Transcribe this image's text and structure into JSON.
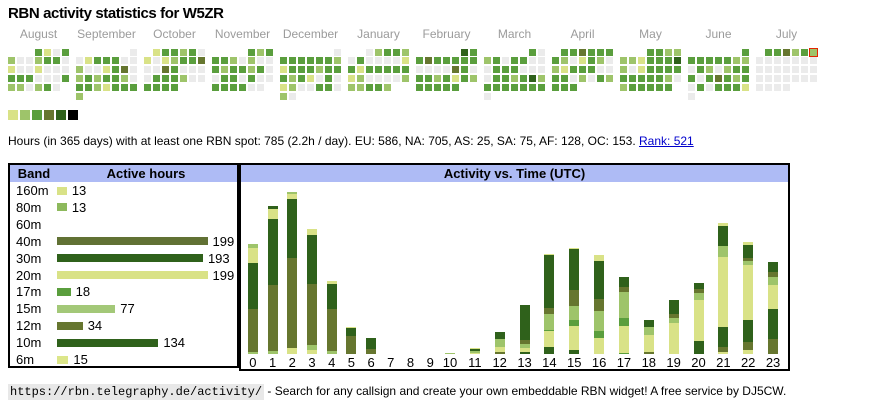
{
  "page": {
    "title": "RBN activity statistics for W5ZR",
    "hours_line_text": "Hours (in 365 days) with at least one RBN spot: 785 (2.2h / day). EU: 586, NA: 705, AS: 25, SA: 75, AF: 128, OC: 153. ",
    "rank_link": "Rank: 521",
    "footer_url": "https://rbn.telegraphy.de/activity/",
    "footer_text": " - Search for any callsign and create your own embeddable RBN widget! A free service by DJ5CW."
  },
  "colors": {
    "level_palette": [
      "#ebebeb",
      "#d9e287",
      "#9ec46a",
      "#5a9e3d",
      "#66762f",
      "#2f611b",
      "#000000"
    ],
    "segment_colors": {
      "L": "#d9e287",
      "S": "#9ec46a",
      "M": "#5a9e3d",
      "O": "#66762f",
      "D": "#2f611b"
    },
    "panel_header_bg": "#aebbf5",
    "month_label": "#9b9b9b",
    "today_border": "#e32400",
    "link": "#0000cc",
    "footer_url_bg": "#e8e8e8"
  },
  "chart_data": [
    {
      "type": "heatmap",
      "title": "365-day activity calendar (one mini month-calendar per month, columns Mon-Sun, color = hours with RBN spots per day, level 0 = none ... 6 = max)",
      "legend_levels": [
        1,
        2,
        3,
        4,
        5,
        6
      ],
      "months": [
        {
          "label": "August",
          "first_col": 3,
          "cells": [
            3,
            1,
            0,
            3,
            2,
            0,
            0,
            2,
            3,
            3,
            0,
            1,
            0,
            0,
            1,
            0,
            0,
            0,
            3,
            3,
            3,
            0,
            0,
            0,
            3,
            2,
            2,
            0,
            2,
            3,
            0
          ]
        },
        {
          "label": "September",
          "first_col": 6,
          "cells": [
            0,
            0,
            1,
            3,
            3,
            3,
            0,
            0,
            2,
            0,
            0,
            1,
            3,
            4,
            0,
            2,
            3,
            2,
            3,
            3,
            2,
            0,
            3,
            3,
            2,
            1,
            3,
            3,
            3,
            2
          ]
        },
        {
          "label": "October",
          "first_col": 1,
          "cells": [
            1,
            3,
            3,
            2,
            3,
            0,
            1,
            0,
            1,
            2,
            3,
            3,
            4,
            0,
            0,
            4,
            3,
            0,
            0,
            0,
            0,
            3,
            3,
            3,
            2,
            0,
            0,
            3,
            3,
            3,
            3
          ]
        },
        {
          "label": "November",
          "first_col": 4,
          "cells": [
            3,
            2,
            3,
            3,
            3,
            2,
            0,
            2,
            0,
            0,
            3,
            2,
            3,
            3,
            2,
            3,
            0,
            0,
            3,
            3,
            0,
            3,
            0,
            0,
            3,
            3,
            3,
            3,
            0,
            0
          ]
        },
        {
          "label": "December",
          "first_col": 6,
          "cells": [
            0,
            3,
            3,
            3,
            3,
            3,
            3,
            2,
            1,
            3,
            3,
            3,
            2,
            3,
            3,
            3,
            2,
            3,
            1,
            0,
            3,
            0,
            1,
            2,
            0,
            0,
            3,
            3,
            0,
            2,
            0
          ]
        },
        {
          "label": "January",
          "first_col": 2,
          "cells": [
            0,
            2,
            3,
            3,
            2,
            0,
            3,
            0,
            0,
            0,
            0,
            1,
            3,
            1,
            3,
            3,
            3,
            3,
            3,
            1,
            2,
            0,
            0,
            0,
            0,
            2,
            2,
            2,
            3,
            3,
            2
          ]
        },
        {
          "label": "February",
          "first_col": 5,
          "cells": [
            5,
            3,
            3,
            4,
            3,
            3,
            3,
            3,
            3,
            0,
            0,
            0,
            0,
            4,
            3,
            0,
            3,
            3,
            2,
            3,
            1,
            3,
            2,
            3,
            3,
            3,
            3,
            3
          ]
        },
        {
          "label": "March",
          "first_col": 5,
          "cells": [
            3,
            0,
            2,
            3,
            0,
            3,
            3,
            0,
            0,
            0,
            3,
            3,
            3,
            0,
            0,
            0,
            0,
            3,
            3,
            2,
            3,
            5,
            2,
            3,
            3,
            3,
            3,
            3,
            3,
            3,
            0
          ]
        },
        {
          "label": "April",
          "first_col": 1,
          "cells": [
            3,
            3,
            4,
            3,
            3,
            3,
            3,
            2,
            0,
            1,
            3,
            2,
            0,
            2,
            1,
            3,
            3,
            3,
            0,
            0,
            3,
            3,
            0,
            2,
            0,
            3,
            2,
            3,
            3,
            3
          ]
        },
        {
          "label": "May",
          "first_col": 3,
          "cells": [
            3,
            3,
            2,
            2,
            2,
            2,
            1,
            3,
            3,
            3,
            5,
            2,
            0,
            1,
            3,
            3,
            3,
            3,
            3,
            3,
            3,
            3,
            3,
            2,
            0,
            2,
            3,
            3,
            3,
            3,
            3
          ]
        },
        {
          "label": "June",
          "first_col": 6,
          "cells": [
            3,
            3,
            3,
            3,
            3,
            3,
            2,
            2,
            0,
            3,
            2,
            0,
            2,
            3,
            3,
            3,
            0,
            3,
            4,
            3,
            2,
            3,
            0,
            3,
            0,
            3,
            3,
            3,
            1,
            0
          ]
        },
        {
          "label": "July",
          "first_col": 1,
          "cells": [
            3,
            3,
            4,
            2,
            3,
            2,
            0,
            0,
            0,
            0,
            0,
            0,
            0,
            0,
            0,
            0,
            0,
            0,
            0,
            0,
            0,
            0,
            0,
            0,
            0,
            0,
            0,
            0,
            0,
            0,
            0
          ],
          "today_cell_index": 5
        }
      ]
    },
    {
      "type": "bar",
      "title": "Active hours per band",
      "col_headers": [
        "Band",
        "Active hours"
      ],
      "categories": [
        "160m",
        "80m",
        "60m",
        "40m",
        "30m",
        "20m",
        "17m",
        "15m",
        "12m",
        "10m",
        "6m"
      ],
      "values": [
        13,
        13,
        0,
        199,
        193,
        199,
        18,
        77,
        34,
        134,
        15
      ],
      "bar_colors": [
        "#d9e287",
        "#8db95c",
        "#9ec46a",
        "#617134",
        "#2f611b",
        "#d9e287",
        "#5a9e3d",
        "#a3c878",
        "#66762f",
        "#2f611b",
        "#dce68a"
      ],
      "value_axis_max": 199
    },
    {
      "type": "bar",
      "subtype": "stacked",
      "title": "Activity vs. Time (UTC)",
      "x": [
        0,
        1,
        2,
        3,
        4,
        5,
        6,
        7,
        8,
        9,
        10,
        11,
        12,
        13,
        14,
        15,
        16,
        17,
        18,
        19,
        20,
        21,
        22,
        23
      ],
      "note": "segments listed bottom-to-top as [band-color-key, height-px]; color keys L/S/M/O/D map to colors.segment_colors",
      "stacks": [
        [
          [
            "S",
            1.7
          ],
          [
            "O",
            43.3
          ],
          [
            "D",
            45.7
          ],
          [
            "L",
            15.5
          ],
          [
            "S",
            3.4
          ]
        ],
        [
          [
            "S",
            3.5
          ],
          [
            "O",
            65.4
          ],
          [
            "D",
            66.6
          ],
          [
            "L",
            9.4
          ],
          [
            "D",
            3.5
          ]
        ],
        [
          [
            "L",
            6.4
          ],
          [
            "O",
            89.2
          ],
          [
            "D",
            59.4
          ],
          [
            "L",
            5.2
          ],
          [
            "S",
            1.9
          ]
        ],
        [
          [
            "L",
            4.4
          ],
          [
            "S",
            4.4
          ],
          [
            "O",
            60.8
          ],
          [
            "D",
            49.2
          ],
          [
            "L",
            6.2
          ]
        ],
        [
          [
            "S",
            3.0
          ],
          [
            "O",
            42.0
          ],
          [
            "D",
            25.5
          ],
          [
            "L",
            3.0
          ]
        ],
        [
          [
            "O",
            17.7
          ],
          [
            "D",
            8.2
          ],
          [
            "L",
            1.6
          ]
        ],
        [
          [
            "O",
            5.2
          ],
          [
            "D",
            10.9
          ]
        ],
        [],
        [],
        [],
        [
          [
            "S",
            1.3
          ]
        ],
        [
          [
            "L",
            0.8
          ],
          [
            "S",
            2.5
          ],
          [
            "D",
            1.6
          ],
          [
            "L",
            1.3
          ]
        ],
        [
          [
            "O",
            2.3
          ],
          [
            "L",
            5.0
          ],
          [
            "S",
            7.7
          ],
          [
            "D",
            6.8
          ]
        ],
        [
          [
            "D",
            2.5
          ],
          [
            "L",
            3.3
          ],
          [
            "S",
            4.0
          ],
          [
            "O",
            4.4
          ],
          [
            "D",
            35.0
          ]
        ],
        [
          [
            "D",
            7.1
          ],
          [
            "L",
            15.7
          ],
          [
            "M",
            1.7
          ],
          [
            "S",
            15.4
          ],
          [
            "O",
            6.5
          ],
          [
            "D",
            52.6
          ],
          [
            "L",
            1.5
          ]
        ],
        [
          [
            "D",
            4.0
          ],
          [
            "L",
            24.0
          ],
          [
            "M",
            6.4
          ],
          [
            "S",
            13.6
          ],
          [
            "O",
            16.0
          ],
          [
            "D",
            40.8
          ],
          [
            "L",
            1.5
          ]
        ],
        [
          [
            "L",
            16.0
          ],
          [
            "M",
            7.0
          ],
          [
            "S",
            20.0
          ],
          [
            "O",
            12.0
          ],
          [
            "D",
            37.6
          ],
          [
            "L",
            6.3
          ]
        ],
        [
          [
            "M",
            1.5
          ],
          [
            "L",
            26.3
          ],
          [
            "M",
            7.9
          ],
          [
            "S",
            26.3
          ],
          [
            "O",
            5.3
          ],
          [
            "D",
            9.2
          ]
        ],
        [
          [
            "O",
            1.6
          ],
          [
            "L",
            17.5
          ],
          [
            "S",
            8.4
          ],
          [
            "D",
            6.1
          ]
        ],
        [
          [
            "L",
            31.0
          ],
          [
            "S",
            5.3
          ],
          [
            "O",
            3.6
          ],
          [
            "D",
            14.1
          ]
        ],
        [
          [
            "D",
            12.8
          ],
          [
            "L",
            41.7
          ],
          [
            "S",
            6.4
          ],
          [
            "O",
            4.2
          ],
          [
            "D",
            5.8
          ]
        ],
        [
          [
            "L",
            2.2
          ],
          [
            "O",
            4.6
          ],
          [
            "D",
            19.9
          ],
          [
            "L",
            70.1
          ],
          [
            "S",
            11.4
          ],
          [
            "D",
            20.2
          ],
          [
            "L",
            3.0
          ]
        ],
        [
          [
            "L",
            3.8
          ],
          [
            "O",
            8.4
          ],
          [
            "D",
            22.1
          ],
          [
            "L",
            54.7
          ],
          [
            "S",
            4.4
          ],
          [
            "O",
            2.2
          ],
          [
            "D",
            13.4
          ],
          [
            "L",
            3.4
          ]
        ],
        [
          [
            "O",
            15.5
          ],
          [
            "D",
            29.1
          ],
          [
            "L",
            24.7
          ],
          [
            "S",
            8.1
          ],
          [
            "O",
            4.4
          ],
          [
            "D",
            10.6
          ]
        ]
      ]
    }
  ]
}
